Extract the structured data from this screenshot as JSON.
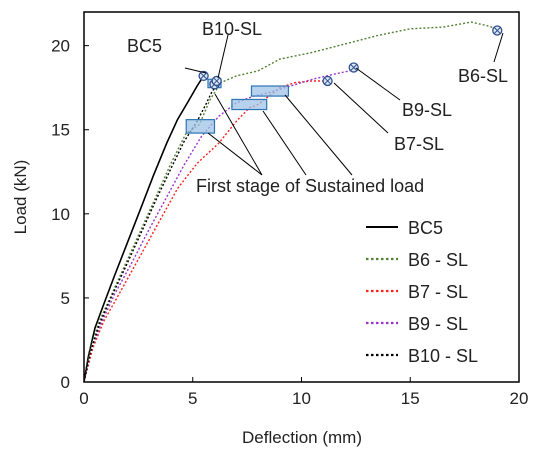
{
  "chart_data": {
    "type": "line",
    "xlabel": "Deflection (mm)",
    "ylabel": "Load (kN)",
    "xlim": [
      0,
      20
    ],
    "ylim": [
      0,
      22
    ],
    "xticks": [
      0,
      5,
      10,
      15,
      20
    ],
    "yticks": [
      0,
      5,
      10,
      15,
      20
    ],
    "grid": false,
    "legend_position": "bottom-right",
    "colors": {
      "BC5": "#000000",
      "B6 - SL": "#548235",
      "B7 - SL": "#ff2020",
      "B9 - SL": "#9933cc",
      "B10 - SL": "#000000"
    },
    "series": [
      {
        "name": "BC5",
        "style": "solid",
        "points": [
          [
            0,
            0
          ],
          [
            0.2,
            1.5
          ],
          [
            0.5,
            3.2
          ],
          [
            0.9,
            4.6
          ],
          [
            1.4,
            6.3
          ],
          [
            2.0,
            8.3
          ],
          [
            2.6,
            10.3
          ],
          [
            3.2,
            12.3
          ],
          [
            3.8,
            14.2
          ],
          [
            4.3,
            15.6
          ],
          [
            4.8,
            16.7
          ],
          [
            5.2,
            17.6
          ],
          [
            5.5,
            18.2
          ]
        ]
      },
      {
        "name": "B6 - SL",
        "style": "dotted",
        "points": [
          [
            0,
            0
          ],
          [
            0.3,
            2.0
          ],
          [
            0.7,
            3.6
          ],
          [
            1.2,
            5.0
          ],
          [
            1.9,
            7.0
          ],
          [
            2.6,
            9.0
          ],
          [
            3.3,
            11.0
          ],
          [
            4.0,
            13.0
          ],
          [
            4.7,
            14.8
          ],
          [
            5.3,
            15.3
          ],
          [
            5.8,
            16.8
          ],
          [
            6.3,
            17.8
          ],
          [
            7.0,
            18.2
          ],
          [
            8.0,
            18.5
          ],
          [
            9.0,
            19.2
          ],
          [
            10.5,
            19.6
          ],
          [
            12.0,
            20.1
          ],
          [
            13.5,
            20.6
          ],
          [
            15.0,
            21.0
          ],
          [
            16.5,
            21.1
          ],
          [
            17.8,
            21.4
          ],
          [
            18.5,
            21.2
          ],
          [
            19.0,
            21.0
          ]
        ]
      },
      {
        "name": "B7 - SL",
        "style": "dotted",
        "points": [
          [
            0,
            0
          ],
          [
            0.4,
            2.0
          ],
          [
            0.9,
            3.6
          ],
          [
            1.6,
            5.2
          ],
          [
            2.5,
            7.3
          ],
          [
            3.4,
            9.4
          ],
          [
            4.3,
            11.5
          ],
          [
            5.2,
            13.0
          ],
          [
            6.2,
            14.2
          ],
          [
            7.0,
            15.5
          ],
          [
            7.6,
            16.3
          ],
          [
            8.0,
            16.5
          ],
          [
            8.4,
            16.9
          ],
          [
            9.0,
            17.5
          ],
          [
            9.7,
            17.8
          ],
          [
            10.5,
            17.9
          ],
          [
            11.2,
            17.9
          ]
        ]
      },
      {
        "name": "B9 - SL",
        "style": "dotted",
        "points": [
          [
            0,
            0
          ],
          [
            0.3,
            1.8
          ],
          [
            0.8,
            3.5
          ],
          [
            1.4,
            5.2
          ],
          [
            2.2,
            7.1
          ],
          [
            3.0,
            9.1
          ],
          [
            3.8,
            11.0
          ],
          [
            4.6,
            12.9
          ],
          [
            5.4,
            14.6
          ],
          [
            6.2,
            15.8
          ],
          [
            7.0,
            16.6
          ],
          [
            7.8,
            17.0
          ],
          [
            8.5,
            17.2
          ],
          [
            9.5,
            17.6
          ],
          [
            10.5,
            18.0
          ],
          [
            11.5,
            18.3
          ],
          [
            12.2,
            18.5
          ],
          [
            12.4,
            18.6
          ]
        ]
      },
      {
        "name": "B10 - SL",
        "style": "dotted",
        "points": [
          [
            0,
            0
          ],
          [
            0.3,
            1.8
          ],
          [
            0.7,
            3.4
          ],
          [
            1.2,
            4.9
          ],
          [
            1.9,
            6.8
          ],
          [
            2.6,
            8.8
          ],
          [
            3.3,
            10.8
          ],
          [
            4.0,
            12.7
          ],
          [
            4.6,
            14.3
          ],
          [
            5.2,
            15.5
          ],
          [
            5.6,
            16.5
          ],
          [
            5.9,
            17.3
          ],
          [
            6.1,
            17.6
          ],
          [
            6.3,
            17.9
          ]
        ]
      }
    ],
    "sustained_load_boxes": [
      {
        "x0": 4.7,
        "x1": 6.0,
        "y0": 14.8,
        "y1": 15.6
      },
      {
        "x0": 5.7,
        "x1": 6.3,
        "y0": 17.5,
        "y1": 18.0
      },
      {
        "x0": 6.8,
        "x1": 8.4,
        "y0": 16.2,
        "y1": 16.8
      },
      {
        "x0": 7.7,
        "x1": 9.4,
        "y0": 17.0,
        "y1": 17.6
      }
    ],
    "failure_markers": [
      {
        "series": "BC5",
        "x": 5.5,
        "y": 18.2
      },
      {
        "series": "B10 - SL",
        "x": 6.0,
        "y": 17.7
      },
      {
        "series": "B10 - SL",
        "x": 6.1,
        "y": 17.9
      },
      {
        "series": "B6 - SL",
        "x": 19.0,
        "y": 20.9
      },
      {
        "series": "B9 - SL",
        "x": 12.4,
        "y": 18.7
      },
      {
        "series": "B7 - SL",
        "x": 11.2,
        "y": 17.9
      }
    ],
    "annotations": {
      "bc5": "BC5",
      "b10": "B10-SL",
      "b6": "B6-SL",
      "b9": "B9-SL",
      "b7": "B7-SL",
      "sustained": "First stage of Sustained load"
    }
  }
}
